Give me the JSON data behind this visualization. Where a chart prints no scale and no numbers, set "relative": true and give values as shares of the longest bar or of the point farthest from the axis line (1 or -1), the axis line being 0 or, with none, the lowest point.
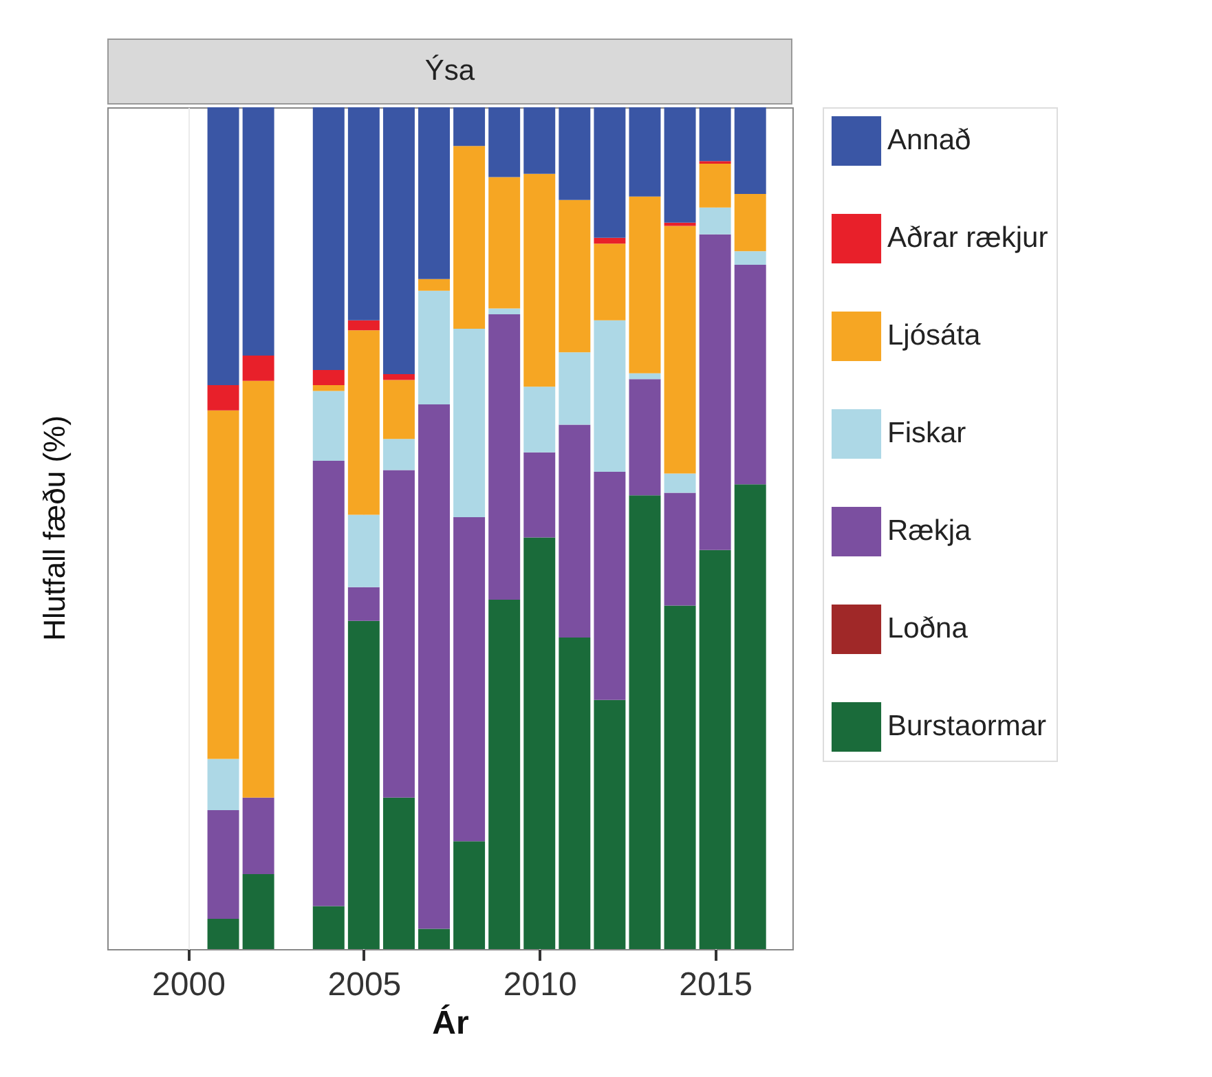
{
  "chart_data": {
    "type": "bar",
    "title": "Ýsa",
    "xlabel": "Ár",
    "ylabel": "Hlutfall fæðu (%)",
    "x": [
      2001,
      2002,
      2004,
      2005,
      2006,
      2007,
      2008,
      2009,
      2010,
      2011,
      2012,
      2013,
      2014,
      2015,
      2016
    ],
    "xlim": [
      1997.7,
      2017.2
    ],
    "xticks": [
      2000,
      2005,
      2010,
      2015
    ],
    "stacked": true,
    "relative": true,
    "grid": "x",
    "legend": "right",
    "series": [
      {
        "name": "Burstaormar",
        "color": "#1a6b3a",
        "values": [
          0.036,
          0.089,
          0.051,
          0.39,
          0.18,
          0.024,
          0.128,
          0.415,
          0.489,
          0.37,
          0.296,
          0.539,
          0.408,
          0.474,
          0.552
        ]
      },
      {
        "name": "Loðna",
        "color": "#a02828",
        "values": [
          0,
          0,
          0,
          0,
          0,
          0,
          0,
          0,
          0,
          0,
          0,
          0,
          0,
          0,
          0
        ]
      },
      {
        "name": "Rækja",
        "color": "#7b4fa0",
        "values": [
          0.129,
          0.091,
          0.529,
          0.04,
          0.389,
          0.623,
          0.385,
          0.339,
          0.101,
          0.253,
          0.271,
          0.138,
          0.134,
          0.375,
          0.261
        ]
      },
      {
        "name": "Fiskar",
        "color": "#add8e6",
        "values": [
          0.061,
          0,
          0.083,
          0.086,
          0.037,
          0.135,
          0.224,
          0.007,
          0.078,
          0.086,
          0.18,
          0.007,
          0.023,
          0.032,
          0.016
        ]
      },
      {
        "name": "Ljósáta",
        "color": "#f6a623",
        "values": [
          0.414,
          0.495,
          0.007,
          0.219,
          0.07,
          0.014,
          0.217,
          0.156,
          0.253,
          0.181,
          0.091,
          0.21,
          0.294,
          0.052,
          0.068
        ]
      },
      {
        "name": "Aðrar rækjur",
        "color": "#e8202a",
        "values": [
          0.03,
          0.03,
          0.018,
          0.012,
          0.007,
          0,
          0,
          0,
          0,
          0,
          0.007,
          0,
          0.004,
          0.003,
          0
        ]
      },
      {
        "name": "Annað",
        "color": "#3a56a5",
        "values": [
          0.33,
          0.295,
          0.312,
          0.253,
          0.317,
          0.204,
          0.046,
          0.083,
          0.079,
          0.11,
          0.155,
          0.106,
          0.137,
          0.064,
          0.103
        ]
      }
    ]
  }
}
